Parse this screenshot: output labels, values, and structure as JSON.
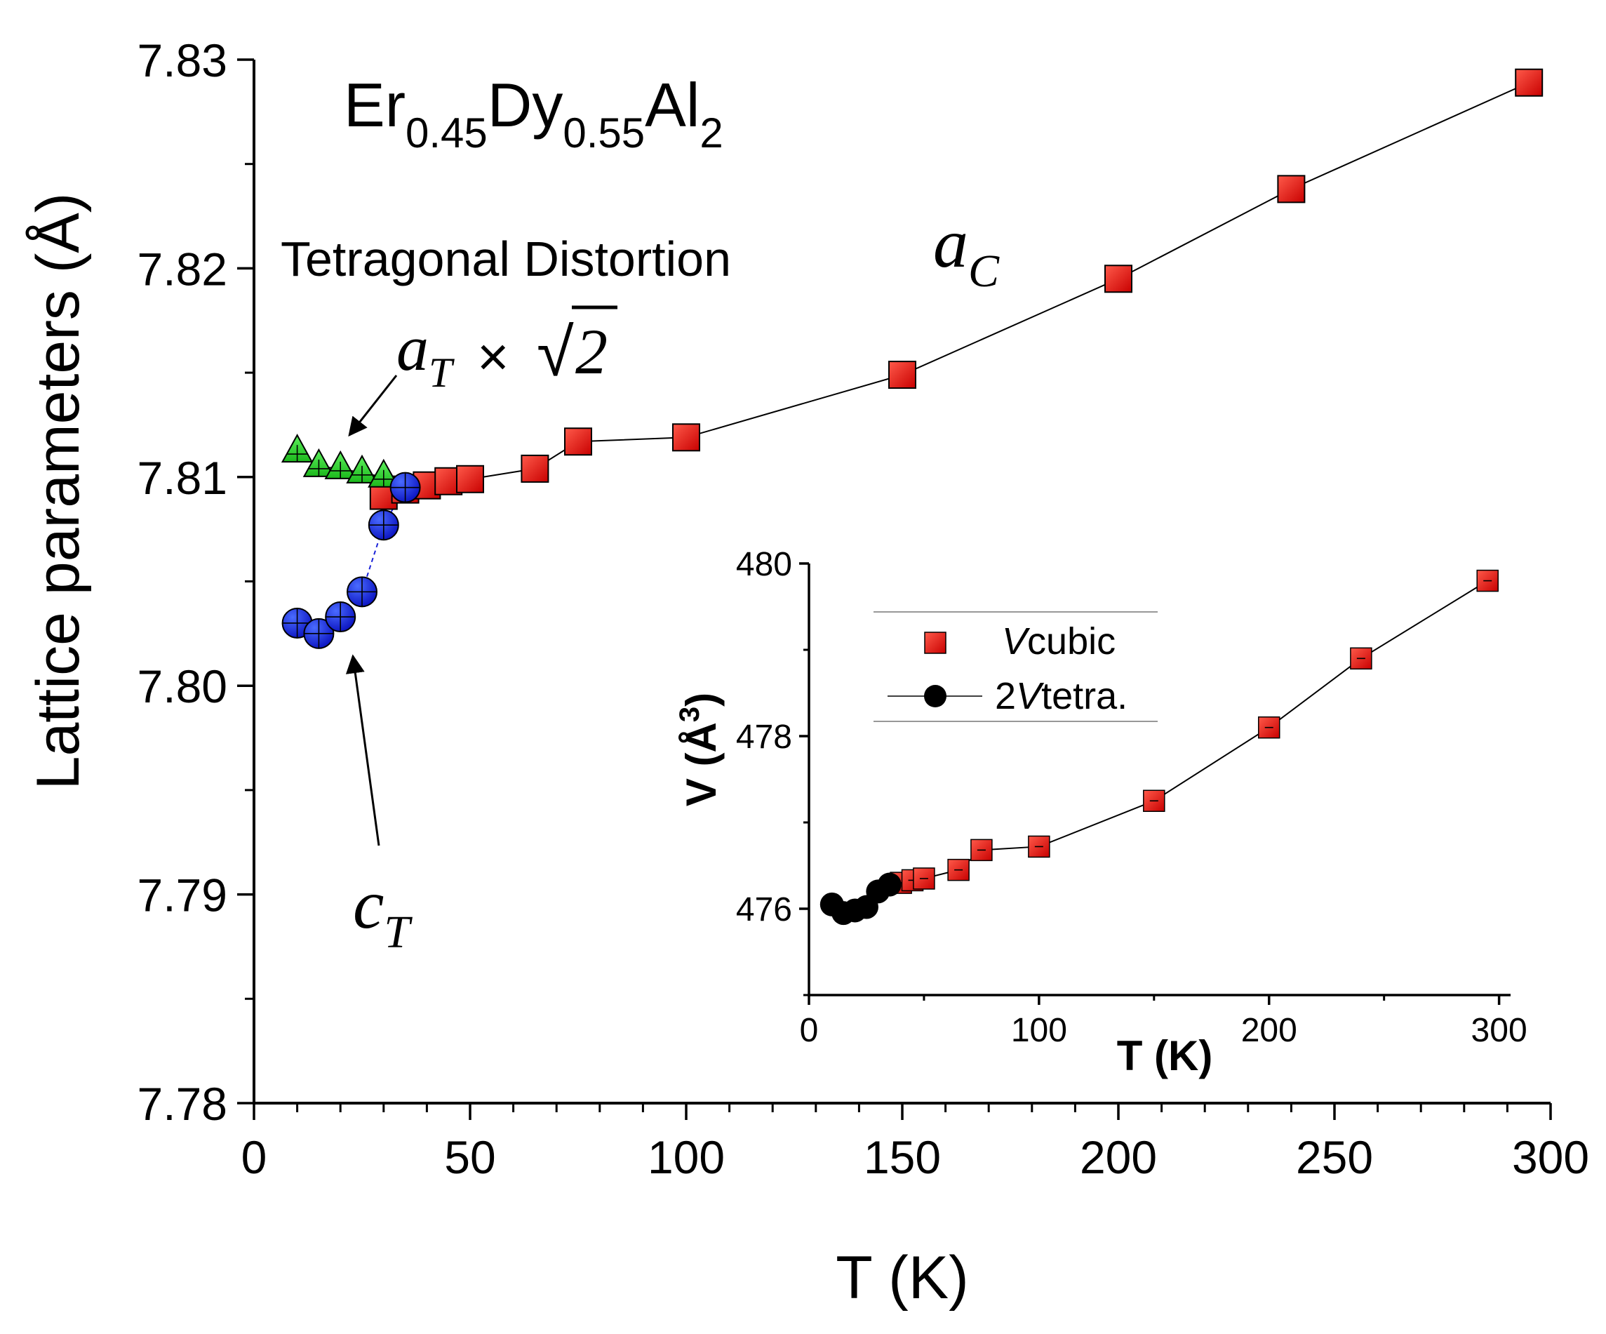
{
  "chart_data": [
    {
      "type": "scatter",
      "title": "Er0.45Dy0.55Al2",
      "title_parts": {
        "el1": "Er",
        "sub1": "0.45",
        "el2": "Dy",
        "sub2": "0.55",
        "el3": "Al",
        "sub3": "2"
      },
      "xlabel": "T (K)",
      "ylabel": "Lattice parameters (Å)",
      "xlim": [
        0,
        300
      ],
      "ylim": [
        7.78,
        7.83
      ],
      "xticks": [
        "0",
        "50",
        "100",
        "150",
        "200",
        "250",
        "300"
      ],
      "yticks": [
        "7.78",
        "7.79",
        "7.80",
        "7.81",
        "7.82",
        "7.83"
      ],
      "annotations": {
        "tetragonal": "Tetragonal Distortion",
        "aC_main": "a",
        "aC_sub": "C",
        "aT_main": "a",
        "aT_sub": "T",
        "aT_times": "×",
        "aT_sqrt": "√",
        "aT_num": "2",
        "cT_main": "c",
        "cT_sub": "T"
      },
      "series": [
        {
          "name": "a_C",
          "color": "#e01010",
          "marker": "square",
          "x": [
            30,
            35,
            40,
            45,
            50,
            65,
            75,
            100,
            150,
            200,
            240,
            295
          ],
          "y": [
            7.8091,
            7.8094,
            7.8096,
            7.8098,
            7.8099,
            7.8104,
            7.8117,
            7.8119,
            7.8149,
            7.8195,
            7.8238,
            7.8289
          ]
        },
        {
          "name": "a_T × √2",
          "color": "#2ed82e",
          "marker": "triangle",
          "x": [
            10,
            15,
            20,
            25,
            30
          ],
          "y": [
            7.8112,
            7.8105,
            7.8104,
            7.8102,
            7.81
          ]
        },
        {
          "name": "c_T",
          "color": "#1a22d8",
          "marker": "circle",
          "x": [
            10,
            15,
            20,
            25,
            30,
            35
          ],
          "y": [
            7.803,
            7.8025,
            7.8033,
            7.8045,
            7.8077,
            7.8095
          ]
        }
      ]
    },
    {
      "type": "scatter",
      "title": "",
      "xlabel": "T (K)",
      "ylabel": "V (Å3)",
      "ylabel_parts": {
        "main": "V (Å",
        "sup": "3",
        "close": ")"
      },
      "xlim": [
        0,
        305
      ],
      "ylim": [
        475,
        480
      ],
      "xticks": [
        "0",
        "100",
        "200",
        "300"
      ],
      "yticks": [
        "476",
        "478",
        "480"
      ],
      "legend_position": "top-left",
      "series": [
        {
          "name": "Vcubic",
          "legend_italic": "V",
          "legend_rest": "cubic",
          "color": "#e01010",
          "marker": "square",
          "x": [
            40,
            45,
            50,
            65,
            75,
            100,
            150,
            200,
            240,
            295
          ],
          "y": [
            476.3,
            476.33,
            476.35,
            476.45,
            476.68,
            476.72,
            477.25,
            478.1,
            478.9,
            479.8
          ]
        },
        {
          "name": "2Vtetra.",
          "legend_pre": "2",
          "legend_italic": "V",
          "legend_rest": "tetra.",
          "color": "#000000",
          "marker": "circle",
          "x": [
            10,
            15,
            20,
            25,
            30,
            35
          ],
          "y": [
            476.05,
            475.95,
            475.98,
            476.02,
            476.2,
            476.28
          ]
        }
      ]
    }
  ]
}
